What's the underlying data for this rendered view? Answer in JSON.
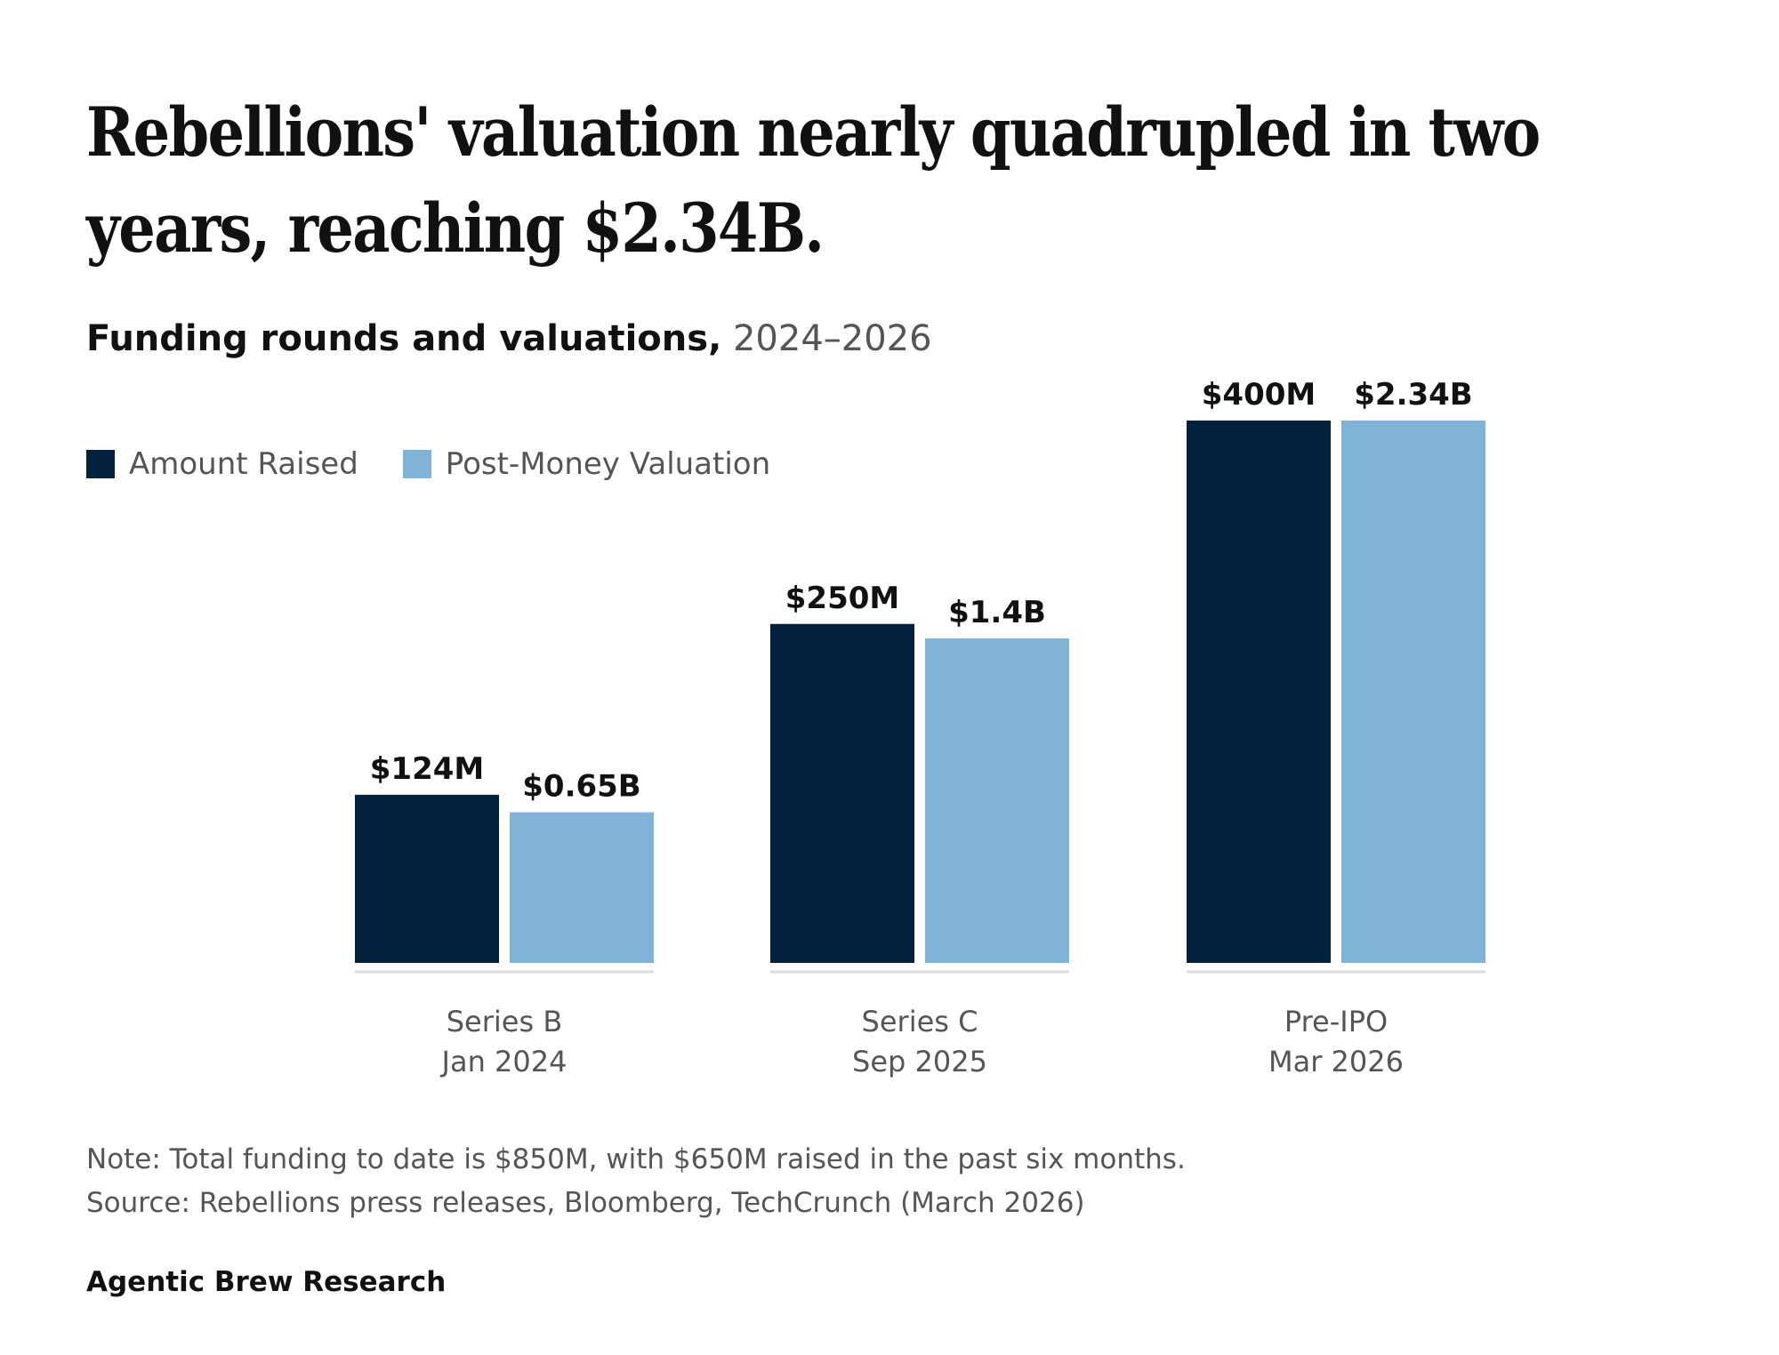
{
  "title": "Rebellions' valuation nearly quadrupled in two years, reaching $2.34B.",
  "subtitle": {
    "bold": "Funding rounds and valuations,",
    "light": "2024–2026"
  },
  "note": "Note: Total funding to date is $850M, with $650M raised in the past six months.",
  "source": "Source: Rebellions press releases, Bloomberg, TechCrunch (March 2026)",
  "brand": "Agentic Brew Research",
  "colors": {
    "amount": "#03203d",
    "valuation": "#80b3d8",
    "axis": "#dddddd"
  },
  "chart_data": {
    "type": "bar",
    "title": "Funding rounds and valuations, 2024–2026",
    "categories": [
      {
        "line1": "Series B",
        "line2": "Jan 2024"
      },
      {
        "line1": "Series C",
        "line2": "Sep 2025"
      },
      {
        "line1": "Pre-IPO",
        "line2": "Mar 2026"
      }
    ],
    "series": [
      {
        "name": "Amount Raised",
        "values": [
          124,
          250,
          400
        ],
        "labels": [
          "$124M",
          "$250M",
          "$400M"
        ],
        "unit": "$M"
      },
      {
        "name": "Post-Money Valuation",
        "values": [
          0.65,
          1.4,
          2.34
        ],
        "labels": [
          "$0.65B",
          "$1.4B",
          "$2.34B"
        ],
        "unit": "$B"
      }
    ],
    "xlabel": "",
    "ylabel": "",
    "grid": false,
    "legend": "top-left",
    "note": "Each series is scaled to its own maximum."
  }
}
